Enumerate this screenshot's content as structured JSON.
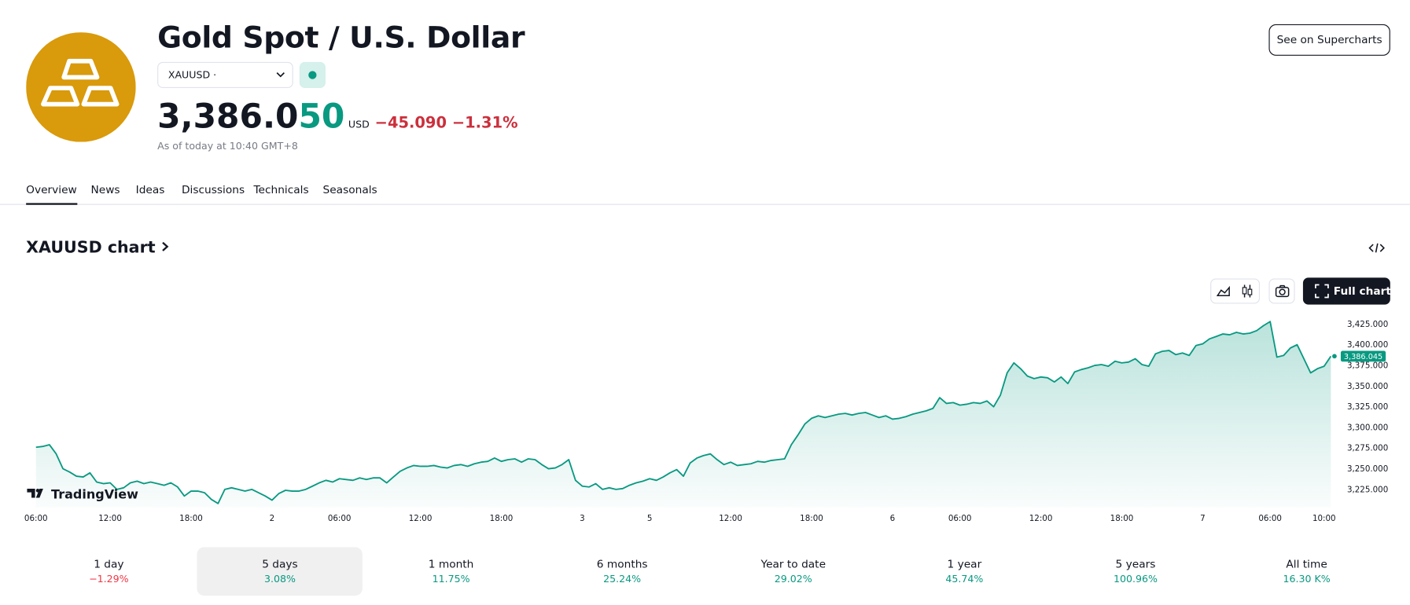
{
  "header": {
    "title": "Gold Spot / U.S. Dollar",
    "symbol": "XAUUSD ·",
    "price_main": "3,386.0",
    "price_tail": "50",
    "currency": "USD",
    "change": "−45.090",
    "change_pct": "−1.31%",
    "as_of": "As of today at 10:40 GMT+8",
    "button": "See on Supercharts"
  },
  "tabs": [
    "Overview",
    "News",
    "Ideas",
    "Discussions",
    "Technicals",
    "Seasonals"
  ],
  "section": {
    "title": "XAUUSD chart",
    "full_chart": "Full chart",
    "watermark": "TradingView"
  },
  "chart_data": {
    "type": "line",
    "color": "#089981",
    "categories": [
      "06:00",
      null,
      null,
      null,
      null,
      null,
      null,
      null,
      null,
      null,
      null,
      "12:00",
      null,
      null,
      null,
      null,
      null,
      null,
      null,
      null,
      null,
      null,
      null,
      "18:00",
      null,
      null,
      null,
      null,
      null,
      null,
      null,
      null,
      null,
      null,
      null,
      "2",
      null,
      null,
      null,
      null,
      null,
      null,
      null,
      null,
      null,
      "06:00",
      null,
      null,
      null,
      null,
      null,
      null,
      null,
      null,
      null,
      null,
      null,
      "12:00",
      null,
      null,
      null,
      null,
      null,
      null,
      null,
      null,
      null,
      null,
      null,
      "18:00",
      null,
      null,
      null,
      null,
      null,
      null,
      null,
      null,
      null,
      null,
      null,
      "3",
      null,
      null,
      null,
      null,
      null,
      null,
      null,
      null,
      null,
      "5",
      null,
      null,
      null,
      null,
      null,
      null,
      null,
      null,
      null,
      null,
      null,
      "12:00",
      null,
      null,
      null,
      null,
      null,
      null,
      null,
      null,
      null,
      null,
      null,
      "18:00",
      null,
      null,
      null,
      null,
      null,
      null,
      null,
      null,
      null,
      null,
      null,
      "6",
      null,
      null,
      null,
      null,
      null,
      null,
      null,
      null,
      null,
      "06:00",
      null,
      null,
      null,
      null,
      null,
      null,
      null,
      null,
      null,
      null,
      null,
      "12:00",
      null,
      null,
      null,
      null,
      null,
      null,
      null,
      null,
      null,
      null,
      null,
      "18:00",
      null,
      null,
      null,
      null,
      null,
      null,
      null,
      null,
      null,
      null,
      null,
      "7",
      null,
      null,
      null,
      null,
      null,
      null,
      null,
      null,
      null,
      "06:00",
      null,
      null,
      null,
      null,
      null,
      null,
      null,
      "10:00",
      null
    ],
    "values": [
      3276,
      3277,
      3279,
      3268,
      3250,
      3246,
      3241,
      3240,
      3245,
      3234,
      3232,
      3233,
      3225,
      3227,
      3233,
      3235,
      3232,
      3234,
      3232,
      3230,
      3233,
      3228,
      3217,
      3223,
      3223,
      3221,
      3213,
      3208,
      3225,
      3227,
      3225,
      3223,
      3225,
      3221,
      3217,
      3212,
      3220,
      3224,
      3223,
      3223,
      3225,
      3229,
      3233,
      3236,
      3234,
      3238,
      3237,
      3236,
      3239,
      3237,
      3239,
      3239,
      3233,
      3240,
      3247,
      3251,
      3254,
      3253,
      3253,
      3254,
      3252,
      3251,
      3254,
      3255,
      3253,
      3256,
      3258,
      3259,
      3263,
      3259,
      3261,
      3262,
      3258,
      3262,
      3261,
      3255,
      3250,
      3251,
      3255,
      3261,
      3236,
      3229,
      3228,
      3232,
      3225,
      3227,
      3225,
      3226,
      3230,
      3233,
      3235,
      3238,
      3236,
      3240,
      3245,
      3249,
      3241,
      3257,
      3263,
      3266,
      3268,
      3261,
      3255,
      3258,
      3254,
      3255,
      3256,
      3259,
      3258,
      3260,
      3261,
      3262,
      3279,
      3291,
      3304,
      3311,
      3314,
      3312,
      3314,
      3316,
      3317,
      3315,
      3317,
      3318,
      3315,
      3312,
      3314,
      3310,
      3311,
      3313,
      3316,
      3318,
      3320,
      3323,
      3336,
      3329,
      3330,
      3327,
      3328,
      3330,
      3329,
      3332,
      3325,
      3339,
      3366,
      3378,
      3371,
      3362,
      3359,
      3361,
      3360,
      3355,
      3361,
      3353,
      3367,
      3370,
      3372,
      3375,
      3376,
      3374,
      3380,
      3378,
      3379,
      3383,
      3376,
      3374,
      3389,
      3392,
      3393,
      3388,
      3390,
      3387,
      3399,
      3401,
      3407,
      3410,
      3413,
      3412,
      3415,
      3413,
      3414,
      3417,
      3423,
      3428,
      3385,
      3387,
      3396,
      3400,
      3383,
      3366,
      3371,
      3374,
      3386
    ],
    "ylim": [
      3203,
      3442
    ],
    "yticks": [
      {
        "value": 3225,
        "label": "3,225.000"
      },
      {
        "value": 3250,
        "label": "3,250.000"
      },
      {
        "value": 3275,
        "label": "3,275.000"
      },
      {
        "value": 3300,
        "label": "3,300.000"
      },
      {
        "value": 3325,
        "label": "3,325.000"
      },
      {
        "value": 3350,
        "label": "3,350.000"
      },
      {
        "value": 3375,
        "label": "3,375.000"
      },
      {
        "value": 3400,
        "label": "3,400.000"
      },
      {
        "value": 3425,
        "label": "3,425.000"
      }
    ],
    "last_price": {
      "value": 3386.045,
      "label": "3,386.045"
    },
    "grid": false
  },
  "periods": {
    "selected_index": 1,
    "items": [
      {
        "label": "1 day",
        "change": "−1.29%",
        "color": "#f23645"
      },
      {
        "label": "5 days",
        "change": "3.08%",
        "color": "#089981"
      },
      {
        "label": "1 month",
        "change": "11.75%",
        "color": "#089981"
      },
      {
        "label": "6 months",
        "change": "25.24%",
        "color": "#089981"
      },
      {
        "label": "Year to date",
        "change": "29.02%",
        "color": "#089981"
      },
      {
        "label": "1 year",
        "change": "45.74%",
        "color": "#089981"
      },
      {
        "label": "5 years",
        "change": "100.96%",
        "color": "#089981"
      },
      {
        "label": "All time",
        "change": "16.30 K%",
        "color": "#089981"
      }
    ]
  }
}
